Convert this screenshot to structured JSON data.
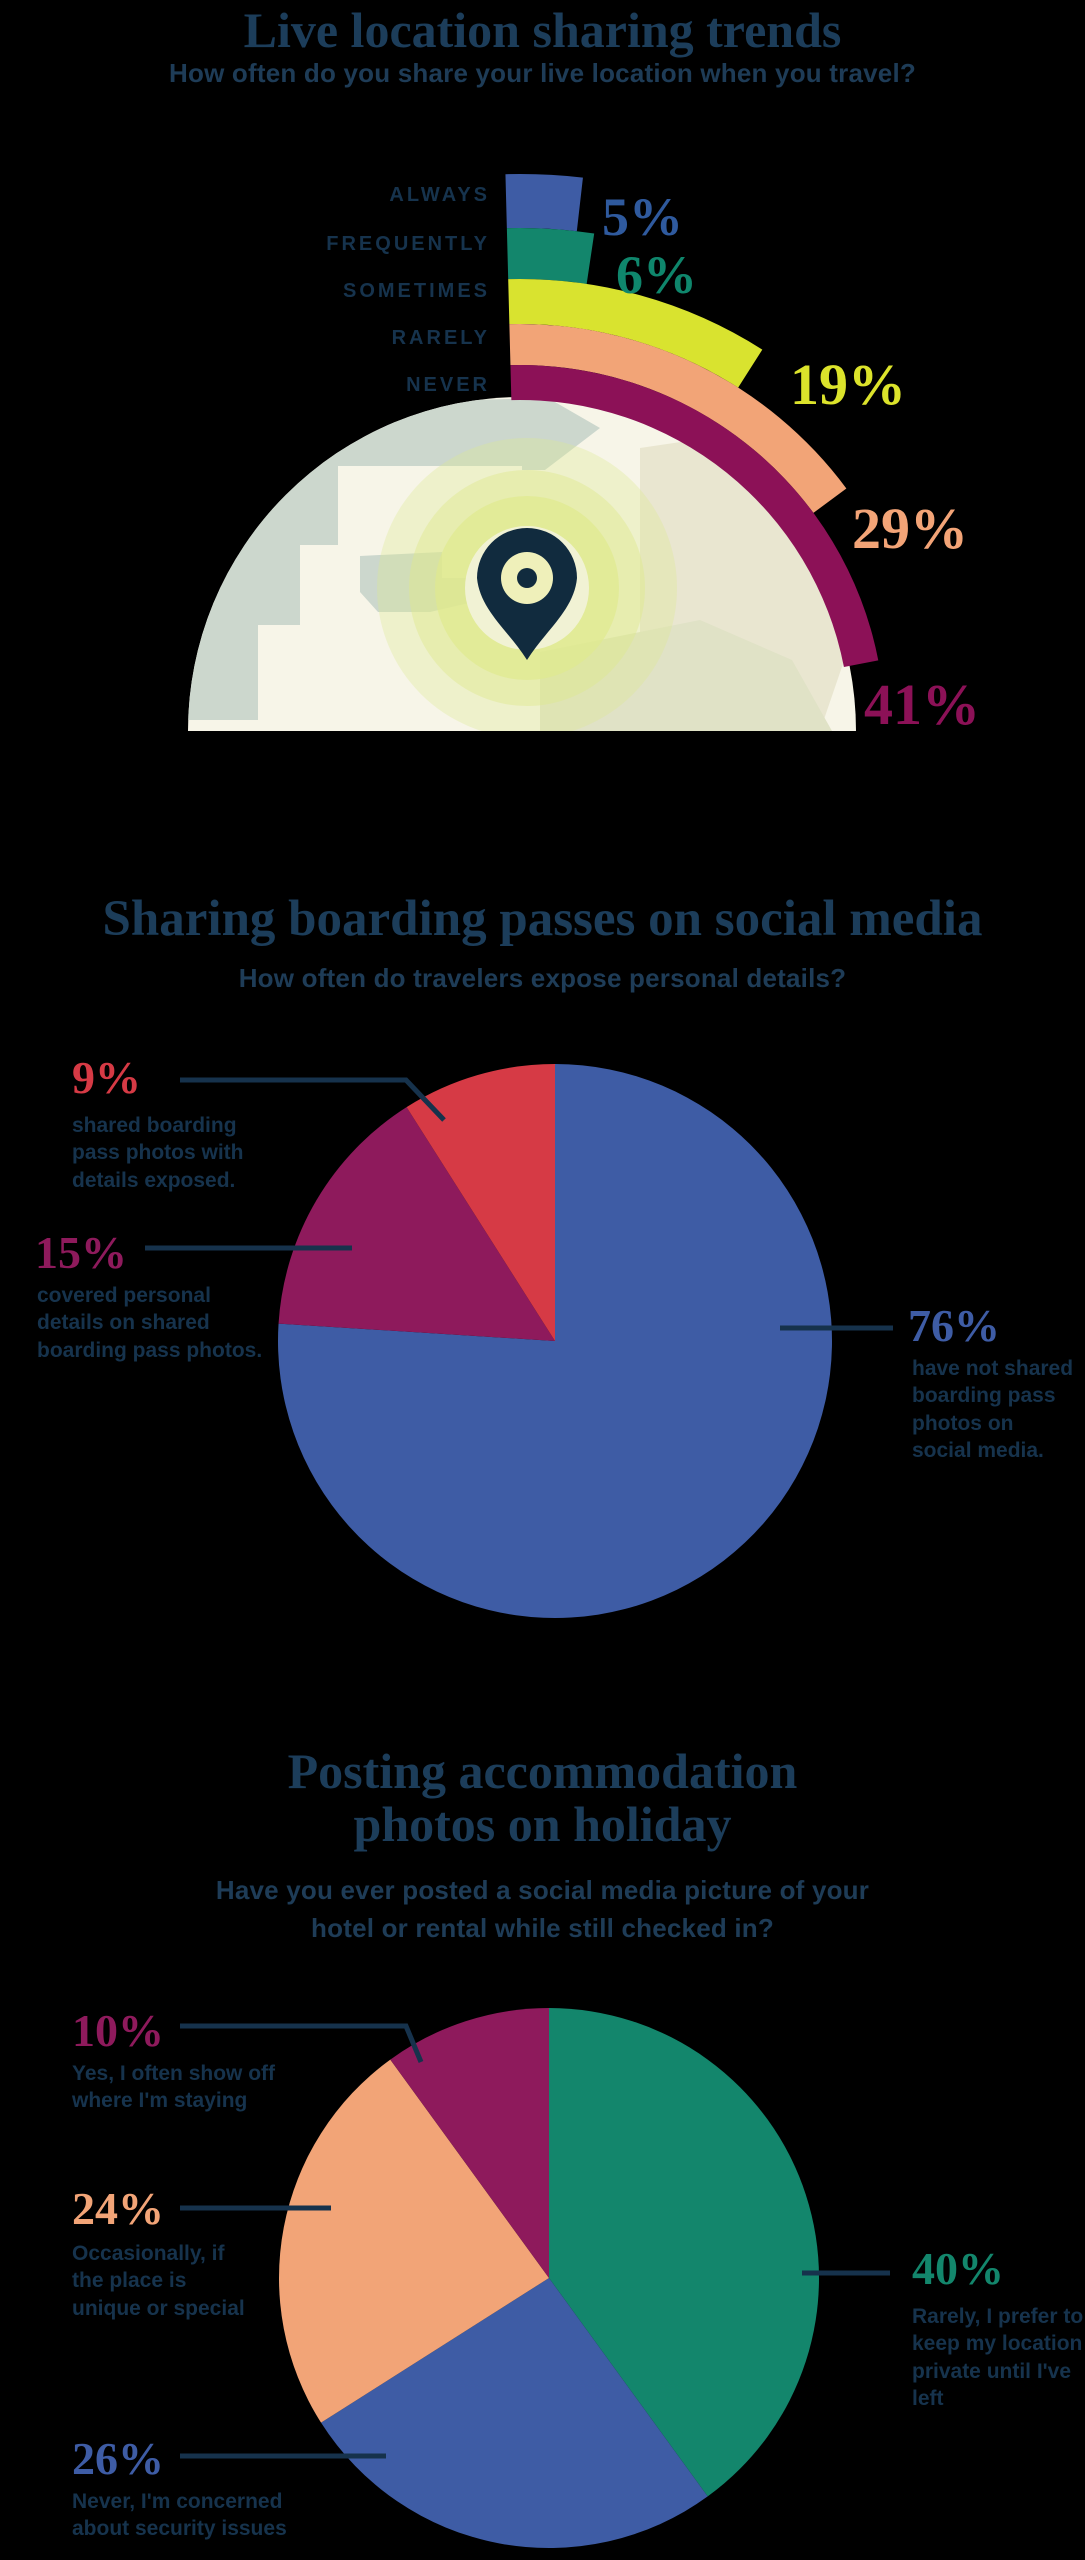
{
  "page": {
    "background": "#000000",
    "text_navy": "#16334d"
  },
  "chart_data": [
    {
      "type": "radial-bar",
      "title": "Live location sharing trends",
      "subtitle": "How often do you share your live location when you travel?",
      "categories": [
        "ALWAYS",
        "FREQUENTLY",
        "SOMETIMES",
        "RARELY",
        "NEVER"
      ],
      "values": [
        5,
        6,
        19,
        29,
        41
      ],
      "value_labels": [
        "5%",
        "6%",
        "19%",
        "29%",
        "41%"
      ],
      "colors": [
        "#3e5ca5",
        "#13866c",
        "#d9e32f",
        "#f2a477",
        "#8c1157"
      ],
      "label_colors": [
        "#2f5a9e",
        "#0f866c",
        "#dce32b",
        "#f3a477",
        "#8c1157"
      ],
      "sweep_deg": [
        8,
        10,
        34,
        55,
        80.5
      ],
      "legend_position": "left of arcs",
      "center_icon": "globe-with-location-pin"
    },
    {
      "type": "pie",
      "title": "Sharing boarding passes on social media",
      "subtitle": "How often do travelers expose personal details?",
      "order": "clockwise from 12 o'clock",
      "slices": [
        {
          "pct_label": "76%",
          "value": 76,
          "color": "#3e5ca5",
          "desc": "have not shared\nboarding pass\nphotos on\nsocial media."
        },
        {
          "pct_label": "15%",
          "value": 15,
          "color": "#8e1a5c",
          "desc": "covered personal\ndetails on shared\nboarding pass photos."
        },
        {
          "pct_label": "9%",
          "value": 9,
          "color": "#d63a45",
          "desc": "shared boarding\npass photos with\ndetails exposed."
        }
      ]
    },
    {
      "type": "pie",
      "title": "Posting accommodation\nphotos on holiday",
      "subtitle": "Have you ever posted a social media picture of your\nhotel or rental while still checked in?",
      "order": "clockwise from 12 o'clock",
      "slices": [
        {
          "pct_label": "40%",
          "value": 40,
          "color": "#13866c",
          "desc": "Rarely, I prefer to\nkeep my location\nprivate until I've left"
        },
        {
          "pct_label": "26%",
          "value": 26,
          "color": "#3e5ca5",
          "desc": "Never, I'm concerned\nabout security issues"
        },
        {
          "pct_label": "24%",
          "value": 24,
          "color": "#f2a477",
          "desc": "Occasionally, if\nthe place is\nunique or special"
        },
        {
          "pct_label": "10%",
          "value": 10,
          "color": "#8e1a5c",
          "desc": "Yes, I often show off\nwhere I'm staying"
        }
      ]
    }
  ]
}
